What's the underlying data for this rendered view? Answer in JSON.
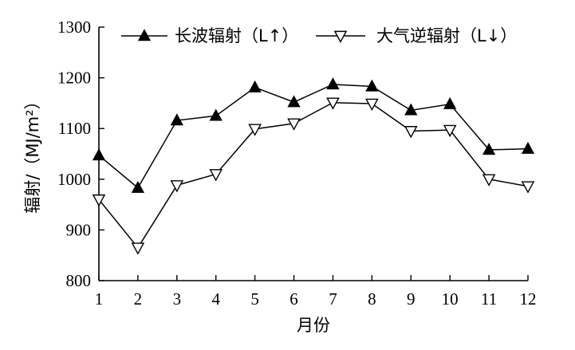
{
  "chart_data": {
    "type": "line",
    "title": "",
    "xlabel": "月份",
    "ylabel": "辐射/（MJ/m²）",
    "categories": [
      "1",
      "2",
      "3",
      "4",
      "5",
      "6",
      "7",
      "8",
      "9",
      "10",
      "11",
      "12"
    ],
    "x": [
      1,
      2,
      3,
      4,
      5,
      6,
      7,
      8,
      9,
      10,
      11,
      12
    ],
    "xlim": [
      1,
      12
    ],
    "ylim": [
      800,
      1300
    ],
    "yticks": [
      800,
      900,
      1000,
      1100,
      1200,
      1300
    ],
    "yticklabels": [
      "800",
      "900",
      "1000",
      "1100",
      "1200",
      "1300"
    ],
    "grid": false,
    "legend_position": "top",
    "series": [
      {
        "name": "长波辐射（L↑）",
        "marker": "filled-triangle-up",
        "color": "#000000",
        "values": [
          1047,
          983,
          1116,
          1125,
          1181,
          1152,
          1187,
          1183,
          1136,
          1148,
          1058,
          1060
        ]
      },
      {
        "name": "大气逆辐射（L↓）",
        "marker": "open-triangle-down",
        "color": "#000000",
        "values": [
          960,
          865,
          988,
          1010,
          1099,
          1110,
          1151,
          1149,
          1095,
          1097,
          1000,
          986
        ]
      }
    ]
  }
}
